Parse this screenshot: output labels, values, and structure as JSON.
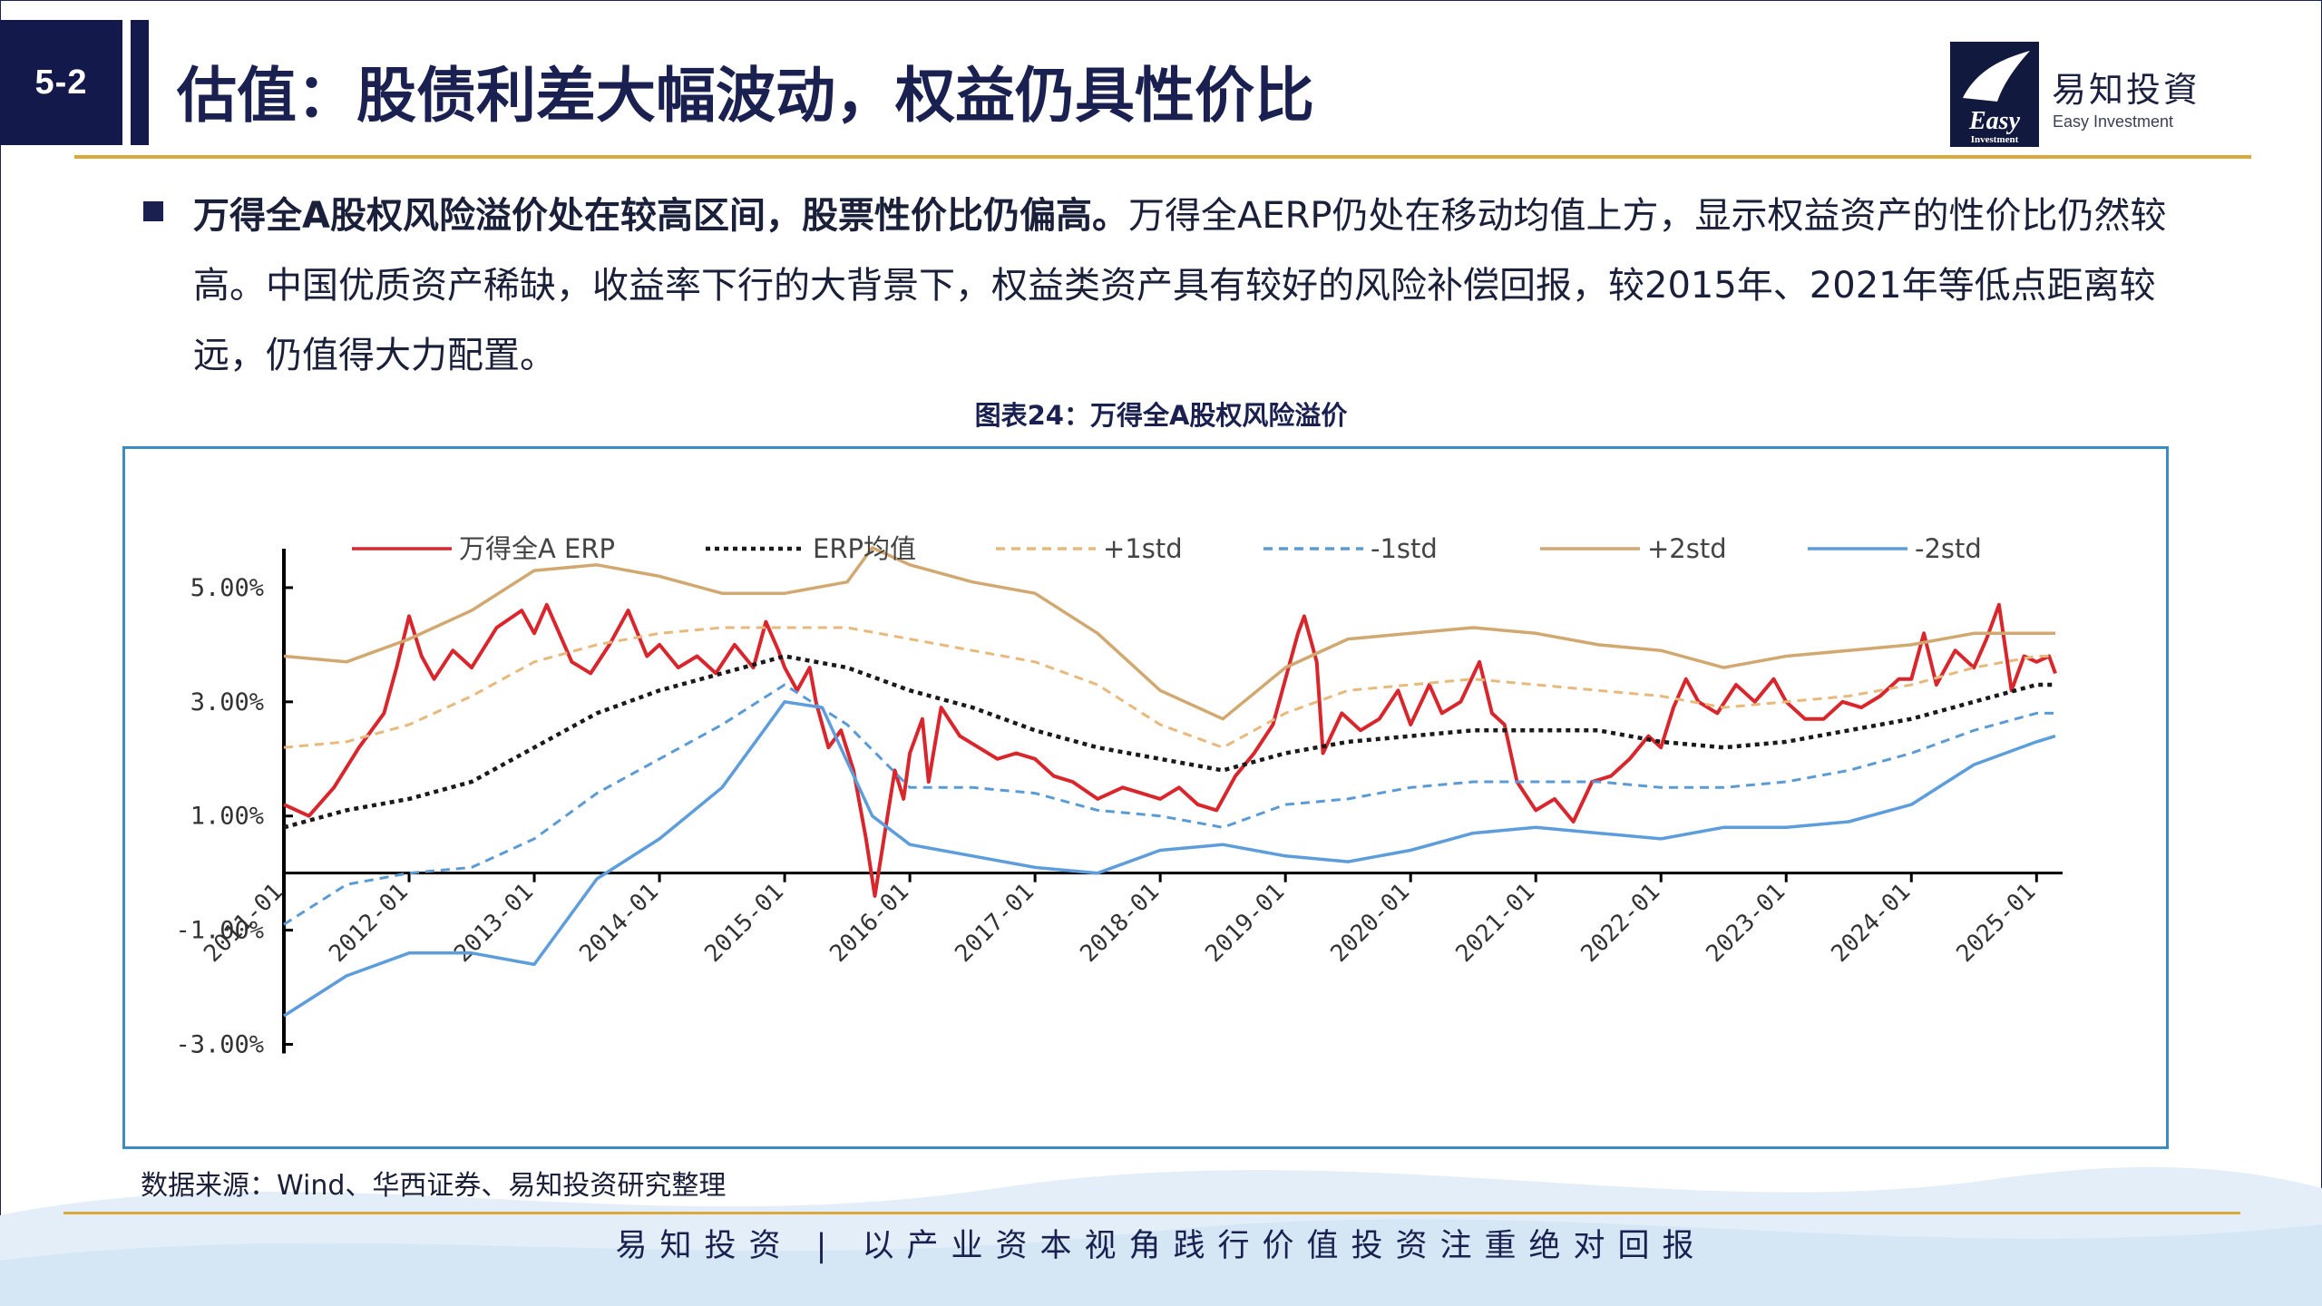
{
  "header": {
    "section_number": "5-2",
    "title": "估值：股债利差大幅波动，权益仍具性价比",
    "logo_name": "易知投資",
    "logo_subtitle": "Easy Investment",
    "logo_box_text_top": "Easy",
    "logo_box_text_bottom": "Investment"
  },
  "body": {
    "lead": "万得全A股权风险溢价处在较高区间，股票性价比仍偏高。",
    "text": "万得全AERP仍处在移动均值上方，显示权益资产的性价比仍然较高。中国优质资产稀缺，收益率下行的大背景下，权益类资产具有较好的风险补偿回报，较2015年、2021年等低点距离较远，仍值得大力配置。"
  },
  "chart_caption": "图表24：万得全A股权风险溢价",
  "source_note": "数据来源：Wind、华西证券、易知投资研究整理",
  "footer": {
    "slogan": "易知投资 | 以产业资本视角践行价值投资注重绝对回报"
  },
  "colors": {
    "navy": "#131a4b",
    "gold": "#d9a93b",
    "chart_border": "#3b8cc4",
    "erp": "#d8262c",
    "mean": "#1a1a1a",
    "plus1": "#e7b97c",
    "minus1": "#5b9bd5",
    "plus2": "#d2a871",
    "minus2": "#5d9ddb"
  },
  "chart_data": {
    "type": "line",
    "title": "",
    "xlabel": "",
    "ylabel": "",
    "ylim": [
      -3.5,
      6
    ],
    "yticks": [
      5,
      3,
      1,
      -1,
      -3
    ],
    "ytick_labels": [
      "5.00%",
      "3.00%",
      "1.00%",
      "-1.00%",
      "-3.00%"
    ],
    "xlim": [
      2011.0,
      2025.15
    ],
    "xticks": [
      2011.0,
      2012.0,
      2013.0,
      2014.0,
      2015.0,
      2016.0,
      2017.0,
      2018.0,
      2019.0,
      2020.0,
      2021.0,
      2022.0,
      2023.0,
      2024.0,
      2025.0
    ],
    "xtick_labels": [
      "2011-01",
      "2012-01",
      "2013-01",
      "2014-01",
      "2015-01",
      "2016-01",
      "2017-01",
      "2018-01",
      "2019-01",
      "2020-01",
      "2021-01",
      "2022-01",
      "2023-01",
      "2024-01",
      "2025-01"
    ],
    "legend_position": "top",
    "grid": false,
    "series": [
      {
        "name": "万得全A ERP",
        "style": "solid",
        "color": "#d8262c",
        "points": [
          [
            2011.0,
            1.2
          ],
          [
            2011.2,
            1.0
          ],
          [
            2011.4,
            1.5
          ],
          [
            2011.6,
            2.2
          ],
          [
            2011.8,
            2.8
          ],
          [
            2011.9,
            3.6
          ],
          [
            2012.0,
            4.5
          ],
          [
            2012.1,
            3.8
          ],
          [
            2012.2,
            3.4
          ],
          [
            2012.35,
            3.9
          ],
          [
            2012.5,
            3.6
          ],
          [
            2012.7,
            4.3
          ],
          [
            2012.9,
            4.6
          ],
          [
            2013.0,
            4.2
          ],
          [
            2013.1,
            4.7
          ],
          [
            2013.2,
            4.2
          ],
          [
            2013.3,
            3.7
          ],
          [
            2013.45,
            3.5
          ],
          [
            2013.6,
            4.0
          ],
          [
            2013.75,
            4.6
          ],
          [
            2013.9,
            3.8
          ],
          [
            2014.0,
            4.0
          ],
          [
            2014.15,
            3.6
          ],
          [
            2014.3,
            3.8
          ],
          [
            2014.45,
            3.5
          ],
          [
            2014.6,
            4.0
          ],
          [
            2014.75,
            3.6
          ],
          [
            2014.85,
            4.4
          ],
          [
            2014.95,
            3.9
          ],
          [
            2015.0,
            3.6
          ],
          [
            2015.1,
            3.2
          ],
          [
            2015.2,
            3.6
          ],
          [
            2015.25,
            3.0
          ],
          [
            2015.35,
            2.2
          ],
          [
            2015.45,
            2.5
          ],
          [
            2015.55,
            1.8
          ],
          [
            2015.65,
            0.6
          ],
          [
            2015.72,
            -0.4
          ],
          [
            2015.8,
            0.7
          ],
          [
            2015.88,
            1.8
          ],
          [
            2015.95,
            1.3
          ],
          [
            2016.0,
            2.1
          ],
          [
            2016.1,
            2.7
          ],
          [
            2016.15,
            1.6
          ],
          [
            2016.25,
            2.9
          ],
          [
            2016.4,
            2.4
          ],
          [
            2016.55,
            2.2
          ],
          [
            2016.7,
            2.0
          ],
          [
            2016.85,
            2.1
          ],
          [
            2017.0,
            2.0
          ],
          [
            2017.15,
            1.7
          ],
          [
            2017.3,
            1.6
          ],
          [
            2017.5,
            1.3
          ],
          [
            2017.7,
            1.5
          ],
          [
            2017.85,
            1.4
          ],
          [
            2018.0,
            1.3
          ],
          [
            2018.15,
            1.5
          ],
          [
            2018.3,
            1.2
          ],
          [
            2018.45,
            1.1
          ],
          [
            2018.6,
            1.7
          ],
          [
            2018.75,
            2.1
          ],
          [
            2018.9,
            2.6
          ],
          [
            2019.0,
            3.4
          ],
          [
            2019.1,
            4.2
          ],
          [
            2019.15,
            4.5
          ],
          [
            2019.25,
            3.7
          ],
          [
            2019.3,
            2.1
          ],
          [
            2019.45,
            2.8
          ],
          [
            2019.6,
            2.5
          ],
          [
            2019.75,
            2.7
          ],
          [
            2019.9,
            3.2
          ],
          [
            2020.0,
            2.6
          ],
          [
            2020.15,
            3.3
          ],
          [
            2020.25,
            2.8
          ],
          [
            2020.4,
            3.0
          ],
          [
            2020.55,
            3.7
          ],
          [
            2020.65,
            2.8
          ],
          [
            2020.75,
            2.6
          ],
          [
            2020.85,
            1.6
          ],
          [
            2021.0,
            1.1
          ],
          [
            2021.15,
            1.3
          ],
          [
            2021.3,
            0.9
          ],
          [
            2021.45,
            1.6
          ],
          [
            2021.6,
            1.7
          ],
          [
            2021.75,
            2.0
          ],
          [
            2021.9,
            2.4
          ],
          [
            2022.0,
            2.2
          ],
          [
            2022.1,
            2.9
          ],
          [
            2022.2,
            3.4
          ],
          [
            2022.3,
            3.0
          ],
          [
            2022.45,
            2.8
          ],
          [
            2022.6,
            3.3
          ],
          [
            2022.75,
            3.0
          ],
          [
            2022.9,
            3.4
          ],
          [
            2023.0,
            3.0
          ],
          [
            2023.15,
            2.7
          ],
          [
            2023.3,
            2.7
          ],
          [
            2023.45,
            3.0
          ],
          [
            2023.6,
            2.9
          ],
          [
            2023.75,
            3.1
          ],
          [
            2023.9,
            3.4
          ],
          [
            2024.0,
            3.4
          ],
          [
            2024.1,
            4.2
          ],
          [
            2024.2,
            3.3
          ],
          [
            2024.35,
            3.9
          ],
          [
            2024.5,
            3.6
          ],
          [
            2024.6,
            4.1
          ],
          [
            2024.7,
            4.7
          ],
          [
            2024.8,
            3.2
          ],
          [
            2024.9,
            3.8
          ],
          [
            2025.0,
            3.7
          ],
          [
            2025.1,
            3.8
          ],
          [
            2025.15,
            3.5
          ]
        ]
      },
      {
        "name": "ERP均值",
        "style": "dotted",
        "color": "#1a1a1a",
        "points": [
          [
            2011.0,
            0.8
          ],
          [
            2011.5,
            1.1
          ],
          [
            2012.0,
            1.3
          ],
          [
            2012.5,
            1.6
          ],
          [
            2013.0,
            2.2
          ],
          [
            2013.5,
            2.8
          ],
          [
            2014.0,
            3.2
          ],
          [
            2014.5,
            3.5
          ],
          [
            2015.0,
            3.8
          ],
          [
            2015.5,
            3.6
          ],
          [
            2016.0,
            3.2
          ],
          [
            2016.5,
            2.9
          ],
          [
            2017.0,
            2.5
          ],
          [
            2017.5,
            2.2
          ],
          [
            2018.0,
            2.0
          ],
          [
            2018.5,
            1.8
          ],
          [
            2019.0,
            2.1
          ],
          [
            2019.5,
            2.3
          ],
          [
            2020.0,
            2.4
          ],
          [
            2020.5,
            2.5
          ],
          [
            2021.0,
            2.5
          ],
          [
            2021.5,
            2.5
          ],
          [
            2022.0,
            2.3
          ],
          [
            2022.5,
            2.2
          ],
          [
            2023.0,
            2.3
          ],
          [
            2023.5,
            2.5
          ],
          [
            2024.0,
            2.7
          ],
          [
            2024.5,
            3.0
          ],
          [
            2025.0,
            3.3
          ],
          [
            2025.15,
            3.3
          ]
        ]
      },
      {
        "name": "+1std",
        "style": "dashed",
        "color": "#e7b97c",
        "points": [
          [
            2011.0,
            2.2
          ],
          [
            2011.5,
            2.3
          ],
          [
            2012.0,
            2.6
          ],
          [
            2012.5,
            3.1
          ],
          [
            2013.0,
            3.7
          ],
          [
            2013.5,
            4.0
          ],
          [
            2014.0,
            4.2
          ],
          [
            2014.5,
            4.3
          ],
          [
            2015.0,
            4.3
          ],
          [
            2015.5,
            4.3
          ],
          [
            2016.0,
            4.1
          ],
          [
            2016.5,
            3.9
          ],
          [
            2017.0,
            3.7
          ],
          [
            2017.5,
            3.3
          ],
          [
            2018.0,
            2.6
          ],
          [
            2018.5,
            2.2
          ],
          [
            2019.0,
            2.8
          ],
          [
            2019.5,
            3.2
          ],
          [
            2020.0,
            3.3
          ],
          [
            2020.5,
            3.4
          ],
          [
            2021.0,
            3.3
          ],
          [
            2021.5,
            3.2
          ],
          [
            2022.0,
            3.1
          ],
          [
            2022.5,
            2.9
          ],
          [
            2023.0,
            3.0
          ],
          [
            2023.5,
            3.1
          ],
          [
            2024.0,
            3.3
          ],
          [
            2024.5,
            3.6
          ],
          [
            2025.0,
            3.8
          ],
          [
            2025.15,
            3.8
          ]
        ]
      },
      {
        "name": "-1std",
        "style": "dashed",
        "color": "#5b9bd5",
        "points": [
          [
            2011.0,
            -0.9
          ],
          [
            2011.5,
            -0.2
          ],
          [
            2012.0,
            0.0
          ],
          [
            2012.5,
            0.1
          ],
          [
            2013.0,
            0.6
          ],
          [
            2013.5,
            1.4
          ],
          [
            2014.0,
            2.0
          ],
          [
            2014.5,
            2.6
          ],
          [
            2015.0,
            3.3
          ],
          [
            2015.5,
            2.6
          ],
          [
            2016.0,
            1.5
          ],
          [
            2016.5,
            1.5
          ],
          [
            2017.0,
            1.4
          ],
          [
            2017.5,
            1.1
          ],
          [
            2018.0,
            1.0
          ],
          [
            2018.5,
            0.8
          ],
          [
            2019.0,
            1.2
          ],
          [
            2019.5,
            1.3
          ],
          [
            2020.0,
            1.5
          ],
          [
            2020.5,
            1.6
          ],
          [
            2021.0,
            1.6
          ],
          [
            2021.5,
            1.6
          ],
          [
            2022.0,
            1.5
          ],
          [
            2022.5,
            1.5
          ],
          [
            2023.0,
            1.6
          ],
          [
            2023.5,
            1.8
          ],
          [
            2024.0,
            2.1
          ],
          [
            2024.5,
            2.5
          ],
          [
            2025.0,
            2.8
          ],
          [
            2025.15,
            2.8
          ]
        ]
      },
      {
        "name": "+2std",
        "style": "solid",
        "color": "#d2a871",
        "points": [
          [
            2011.0,
            3.8
          ],
          [
            2011.5,
            3.7
          ],
          [
            2012.0,
            4.1
          ],
          [
            2012.5,
            4.6
          ],
          [
            2013.0,
            5.3
          ],
          [
            2013.5,
            5.4
          ],
          [
            2014.0,
            5.2
          ],
          [
            2014.5,
            4.9
          ],
          [
            2015.0,
            4.9
          ],
          [
            2015.5,
            5.1
          ],
          [
            2015.7,
            5.7
          ],
          [
            2016.0,
            5.4
          ],
          [
            2016.5,
            5.1
          ],
          [
            2017.0,
            4.9
          ],
          [
            2017.5,
            4.2
          ],
          [
            2018.0,
            3.2
          ],
          [
            2018.5,
            2.7
          ],
          [
            2019.0,
            3.6
          ],
          [
            2019.5,
            4.1
          ],
          [
            2020.0,
            4.2
          ],
          [
            2020.5,
            4.3
          ],
          [
            2021.0,
            4.2
          ],
          [
            2021.5,
            4.0
          ],
          [
            2022.0,
            3.9
          ],
          [
            2022.5,
            3.6
          ],
          [
            2023.0,
            3.8
          ],
          [
            2023.5,
            3.9
          ],
          [
            2024.0,
            4.0
          ],
          [
            2024.5,
            4.2
          ],
          [
            2025.0,
            4.2
          ],
          [
            2025.15,
            4.2
          ]
        ]
      },
      {
        "name": "-2std",
        "style": "solid",
        "color": "#5d9ddb",
        "points": [
          [
            2011.0,
            -2.5
          ],
          [
            2011.5,
            -1.8
          ],
          [
            2012.0,
            -1.4
          ],
          [
            2012.5,
            -1.4
          ],
          [
            2013.0,
            -1.6
          ],
          [
            2013.5,
            -0.1
          ],
          [
            2014.0,
            0.6
          ],
          [
            2014.5,
            1.5
          ],
          [
            2015.0,
            3.0
          ],
          [
            2015.3,
            2.9
          ],
          [
            2015.7,
            1.0
          ],
          [
            2016.0,
            0.5
          ],
          [
            2016.5,
            0.3
          ],
          [
            2017.0,
            0.1
          ],
          [
            2017.5,
            0.0
          ],
          [
            2018.0,
            0.4
          ],
          [
            2018.5,
            0.5
          ],
          [
            2019.0,
            0.3
          ],
          [
            2019.5,
            0.2
          ],
          [
            2020.0,
            0.4
          ],
          [
            2020.5,
            0.7
          ],
          [
            2021.0,
            0.8
          ],
          [
            2021.5,
            0.7
          ],
          [
            2022.0,
            0.6
          ],
          [
            2022.5,
            0.8
          ],
          [
            2023.0,
            0.8
          ],
          [
            2023.5,
            0.9
          ],
          [
            2024.0,
            1.2
          ],
          [
            2024.5,
            1.9
          ],
          [
            2025.0,
            2.3
          ],
          [
            2025.15,
            2.4
          ]
        ]
      }
    ]
  }
}
